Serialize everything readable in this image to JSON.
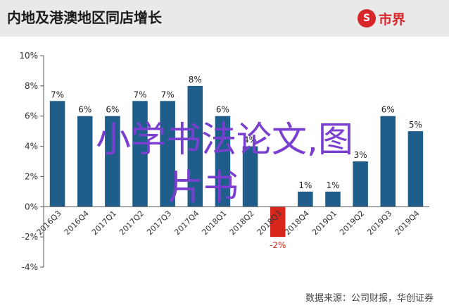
{
  "header": {
    "title": "内地及港澳地区同店增长",
    "logo_mark": "S",
    "logo_text": "市界"
  },
  "chart_data": {
    "type": "bar",
    "title": "内地及港澳地区同店增长",
    "categories": [
      "2016Q3",
      "2016Q4",
      "2017Q1",
      "2017Q2",
      "2017Q3",
      "2017Q4",
      "2018Q1",
      "2018Q2",
      "2018Q3",
      "2018Q4",
      "2019Q1",
      "2019Q2",
      "2019Q3",
      "2019Q4"
    ],
    "values": [
      7,
      6,
      6,
      7,
      7,
      8,
      6,
      4,
      -2,
      1,
      1,
      3,
      6,
      5
    ],
    "value_labels": [
      "7%",
      "6%",
      "6%",
      "7%",
      "7%",
      "8%",
      "6%",
      "4%",
      "-2%",
      "1%",
      "1%",
      "3%",
      "6%",
      "5%"
    ],
    "ylim": [
      -4,
      10
    ],
    "yticks": [
      -4,
      -2,
      0,
      2,
      4,
      6,
      8,
      10
    ],
    "ytick_labels": [
      "-4%",
      "-2%",
      "0%",
      "2%",
      "4%",
      "6%",
      "8%",
      "10%"
    ],
    "colors": {
      "positive": "#1f5d8a",
      "negative": "#d9261c",
      "negative_label": "#d9261c"
    },
    "grid": false,
    "legend": "none"
  },
  "footer": {
    "source": "数据来源：公司财报，华创证券"
  },
  "watermark": {
    "line1": "小学书法论文,图",
    "line2": "片书"
  }
}
